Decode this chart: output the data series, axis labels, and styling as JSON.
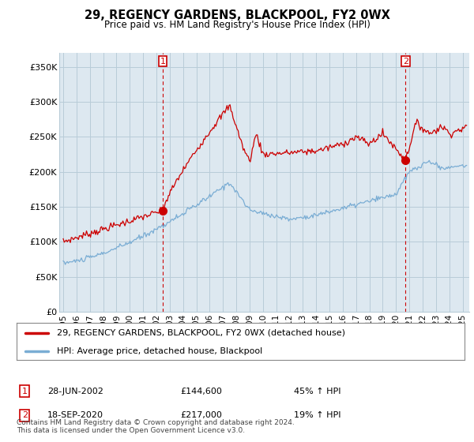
{
  "title": "29, REGENCY GARDENS, BLACKPOOL, FY2 0WX",
  "subtitle": "Price paid vs. HM Land Registry's House Price Index (HPI)",
  "ylabel_ticks": [
    "£0",
    "£50K",
    "£100K",
    "£150K",
    "£200K",
    "£250K",
    "£300K",
    "£350K"
  ],
  "ytick_values": [
    0,
    50000,
    100000,
    150000,
    200000,
    250000,
    300000,
    350000
  ],
  "ylim": [
    0,
    370000
  ],
  "xlim_start": 1994.7,
  "xlim_end": 2025.5,
  "legend_line1": "29, REGENCY GARDENS, BLACKPOOL, FY2 0WX (detached house)",
  "legend_line2": "HPI: Average price, detached house, Blackpool",
  "red_color": "#cc0000",
  "blue_color": "#7aadd4",
  "plot_bg_color": "#dde8f0",
  "marker1_date": 2002.49,
  "marker1_value": 144600,
  "marker2_date": 2020.72,
  "marker2_value": 217000,
  "footer": "Contains HM Land Registry data © Crown copyright and database right 2024.\nThis data is licensed under the Open Government Licence v3.0.",
  "background_color": "#ffffff",
  "grid_color": "#b8ccd8",
  "dashed_line_color": "#cc0000"
}
